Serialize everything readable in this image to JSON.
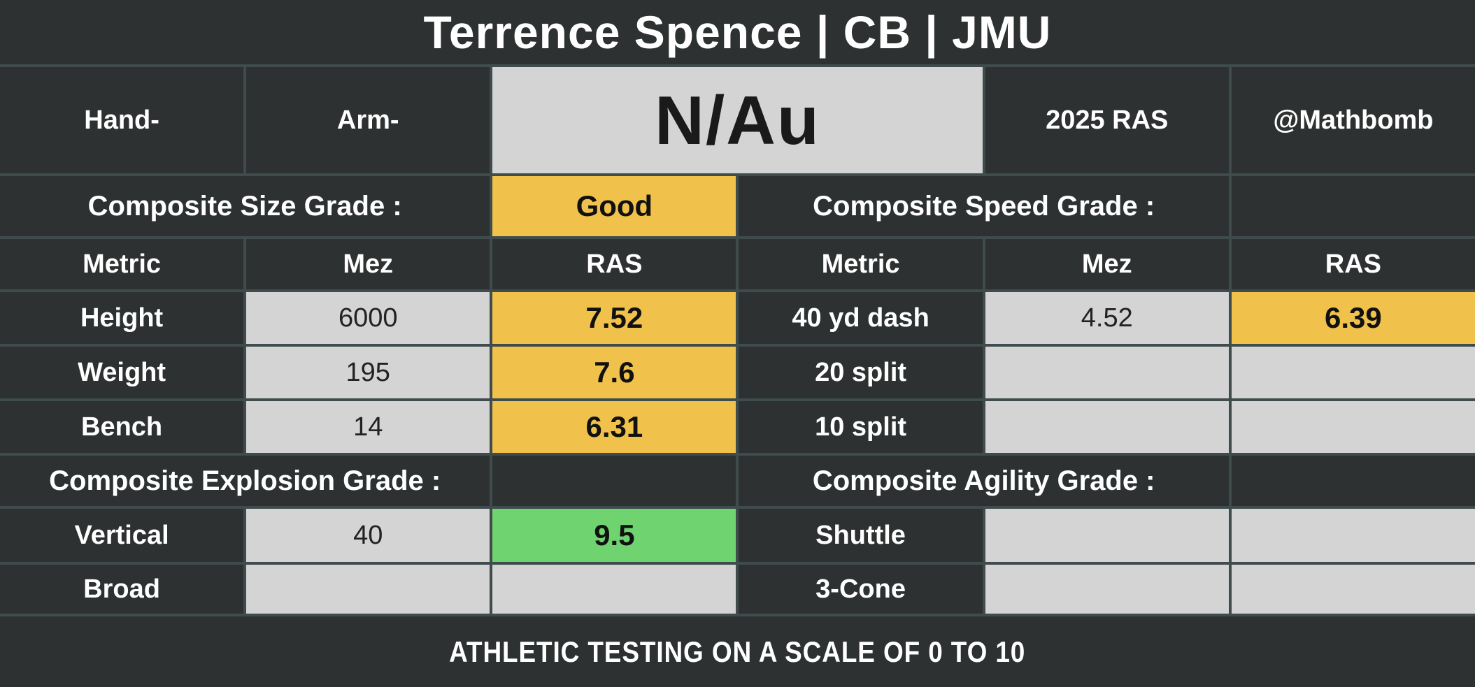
{
  "title": "Terrence Spence | CB | JMU",
  "top_row": {
    "hand_label": "Hand-",
    "arm_label": "Arm-",
    "ras_score": "N/Au",
    "year_label": "2025 RAS",
    "author": "@Mathbomb"
  },
  "grades": {
    "size_label": "Composite Size Grade :",
    "size_value": "Good",
    "speed_label": "Composite Speed Grade :",
    "speed_value": "",
    "explosion_label": "Composite Explosion Grade :",
    "explosion_value": "",
    "agility_label": "Composite Agility Grade :",
    "agility_value": ""
  },
  "headers": {
    "metric": "Metric",
    "mez": "Mez",
    "ras": "RAS"
  },
  "left_rows": [
    {
      "metric": "Height",
      "mez": "6000",
      "ras": "7.52"
    },
    {
      "metric": "Weight",
      "mez": "195",
      "ras": "7.6"
    },
    {
      "metric": "Bench",
      "mez": "14",
      "ras": "6.31"
    },
    {
      "metric": "Vertical",
      "mez": "40",
      "ras": "9.5"
    },
    {
      "metric": "Broad",
      "mez": "",
      "ras": ""
    }
  ],
  "right_rows": [
    {
      "metric": "40 yd dash",
      "mez": "4.52",
      "ras": "6.39"
    },
    {
      "metric": "20 split",
      "mez": "",
      "ras": ""
    },
    {
      "metric": "10 split",
      "mez": "",
      "ras": ""
    },
    {
      "metric": "Shuttle",
      "mez": "",
      "ras": ""
    },
    {
      "metric": "3-Cone",
      "mez": "",
      "ras": ""
    }
  ],
  "footer": "ATHLETIC TESTING ON A SCALE OF 0 TO 10",
  "colors": {
    "bg_dark": "#2e3131",
    "border": "#3f4b4c",
    "cell_light": "#d3d4d3",
    "gold": "#f1c24b",
    "green": "#6fd46f",
    "text_light": "#ffffff",
    "text_dark": "#1a1a1a"
  },
  "chart_data": {
    "type": "table",
    "title": "Terrence Spence | CB | JMU",
    "columns": [
      "Metric",
      "Mez",
      "RAS"
    ],
    "rows": [
      [
        "Height",
        "6000",
        7.52
      ],
      [
        "Weight",
        "195",
        7.6
      ],
      [
        "Bench",
        "14",
        6.31
      ],
      [
        "Vertical",
        "40",
        9.5
      ],
      [
        "Broad",
        "",
        null
      ],
      [
        "40 yd dash",
        "4.52",
        6.39
      ],
      [
        "20 split",
        "",
        null
      ],
      [
        "10 split",
        "",
        null
      ],
      [
        "Shuttle",
        "",
        null
      ],
      [
        "3-Cone",
        "",
        null
      ]
    ],
    "composite_grades": {
      "size": "Good",
      "speed": "",
      "explosion": "",
      "agility": ""
    },
    "scale": [
      0,
      10
    ],
    "note": "ATHLETIC TESTING ON A SCALE OF 0 TO 10",
    "year": "2025 RAS",
    "source": "@Mathbomb"
  }
}
